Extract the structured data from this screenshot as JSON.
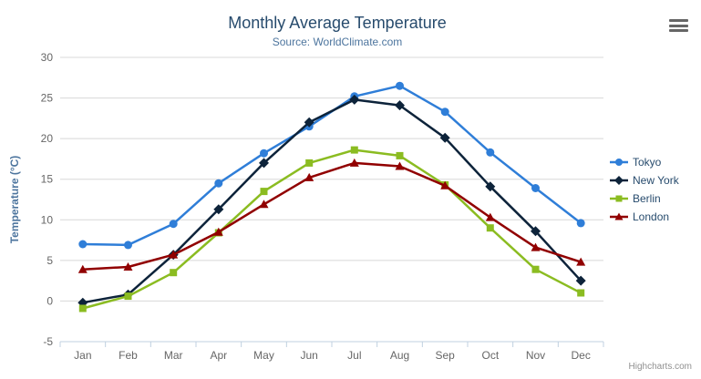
{
  "header": {
    "title": "Monthly Average Temperature",
    "subtitle": "Source: WorldClimate.com"
  },
  "credits": "Highcharts.com",
  "colors": {
    "title": "#274b6d",
    "subtitle": "#4d759e",
    "axis_labels": "#666666",
    "y_axis_title": "#4d759e",
    "gridline": "#d8d8d8",
    "axis_line": "#c0d0e0",
    "legend_text": "#274b6d",
    "credits_text": "#909090",
    "menu_icon": "#666666"
  },
  "chart_data": {
    "type": "line",
    "title": "Monthly Average Temperature",
    "subtitle": "Source: WorldClimate.com",
    "categories": [
      "Jan",
      "Feb",
      "Mar",
      "Apr",
      "May",
      "Jun",
      "Jul",
      "Aug",
      "Sep",
      "Oct",
      "Nov",
      "Dec"
    ],
    "xlabel": "",
    "ylabel": "Temperature (°C)",
    "ylim": [
      -5,
      30
    ],
    "ytick_interval": 5,
    "ytick_labels": [
      "-5",
      "0",
      "5",
      "10",
      "15",
      "20",
      "25",
      "30"
    ],
    "grid": "horizontal",
    "legend_position": "right",
    "series": [
      {
        "name": "Tokyo",
        "color": "#2f7ed8",
        "marker": "circle",
        "values": [
          7.0,
          6.9,
          9.5,
          14.5,
          18.2,
          21.5,
          25.2,
          26.5,
          23.3,
          18.3,
          13.9,
          9.6
        ]
      },
      {
        "name": "New York",
        "color": "#0d233a",
        "marker": "diamond",
        "values": [
          -0.2,
          0.8,
          5.7,
          11.3,
          17.0,
          22.0,
          24.8,
          24.1,
          20.1,
          14.1,
          8.6,
          2.5
        ]
      },
      {
        "name": "Berlin",
        "color": "#8bbc21",
        "marker": "square",
        "values": [
          -0.9,
          0.6,
          3.5,
          8.4,
          13.5,
          17.0,
          18.6,
          17.9,
          14.3,
          9.0,
          3.9,
          1.0
        ]
      },
      {
        "name": "London",
        "color": "#910000",
        "marker": "triangle",
        "values": [
          3.9,
          4.2,
          5.7,
          8.5,
          11.9,
          15.2,
          17.0,
          16.6,
          14.2,
          10.3,
          6.6,
          4.8
        ]
      }
    ]
  }
}
